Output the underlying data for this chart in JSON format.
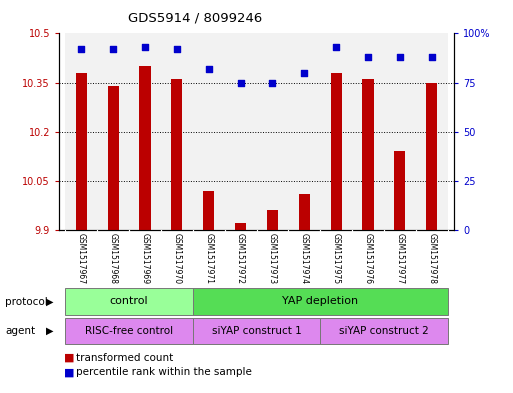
{
  "title": "GDS5914 / 8099246",
  "samples": [
    "GSM1517967",
    "GSM1517968",
    "GSM1517969",
    "GSM1517970",
    "GSM1517971",
    "GSM1517972",
    "GSM1517973",
    "GSM1517974",
    "GSM1517975",
    "GSM1517976",
    "GSM1517977",
    "GSM1517978"
  ],
  "transformed_counts": [
    10.38,
    10.34,
    10.4,
    10.36,
    10.02,
    9.92,
    9.96,
    10.01,
    10.38,
    10.36,
    10.14,
    10.35
  ],
  "percentile_ranks": [
    92,
    92,
    93,
    92,
    82,
    75,
    75,
    80,
    93,
    88,
    88,
    88
  ],
  "ylim_left": [
    9.9,
    10.5
  ],
  "ylim_right": [
    0,
    100
  ],
  "yticks_left": [
    9.9,
    10.05,
    10.2,
    10.35,
    10.5
  ],
  "yticks_right": [
    0,
    25,
    50,
    75,
    100
  ],
  "ytick_labels_left": [
    "9.9",
    "10.05",
    "10.2",
    "10.35",
    "10.5"
  ],
  "ytick_labels_right": [
    "0",
    "25",
    "50",
    "75",
    "100%"
  ],
  "bar_color": "#bb0000",
  "dot_color": "#0000cc",
  "bar_bottom": 9.9,
  "protocol_groups": [
    {
      "label": "control",
      "start": 0,
      "end": 3,
      "color": "#99ff99"
    },
    {
      "label": "YAP depletion",
      "start": 4,
      "end": 11,
      "color": "#55dd55"
    }
  ],
  "agent_groups": [
    {
      "label": "RISC-free control",
      "start": 0,
      "end": 3,
      "color": "#ee88ee"
    },
    {
      "label": "siYAP construct 1",
      "start": 4,
      "end": 7,
      "color": "#ee88ee"
    },
    {
      "label": "siYAP construct 2",
      "start": 8,
      "end": 11,
      "color": "#ee88ee"
    }
  ],
  "legend_items": [
    {
      "label": "transformed count",
      "color": "#bb0000"
    },
    {
      "label": "percentile rank within the sample",
      "color": "#0000cc"
    }
  ],
  "background_color": "#ffffff"
}
